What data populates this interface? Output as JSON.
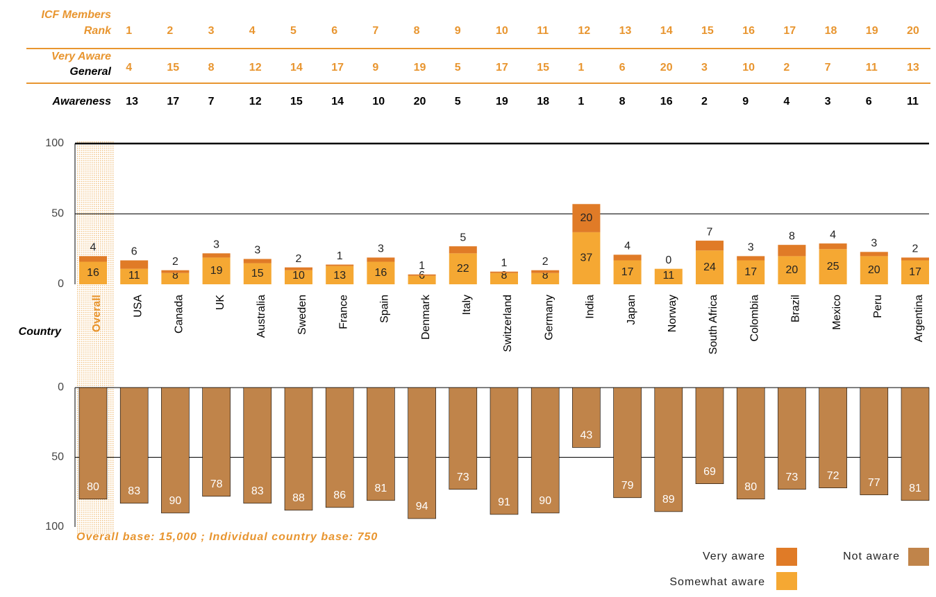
{
  "rank_table": {
    "columns": [
      1,
      2,
      3,
      4,
      5,
      6,
      7,
      8,
      9,
      10,
      11,
      12,
      13,
      14,
      15,
      16,
      17,
      18,
      19,
      20
    ],
    "rows": [
      {
        "label": [
          "ICF Members",
          "Rank"
        ],
        "values": [
          1,
          2,
          3,
          4,
          5,
          6,
          7,
          8,
          9,
          10,
          11,
          12,
          13,
          14,
          15,
          16,
          17,
          18,
          19,
          20
        ]
      },
      {
        "label": [
          "Very Aware"
        ],
        "values": [
          4,
          15,
          8,
          12,
          14,
          17,
          9,
          19,
          5,
          17,
          15,
          1,
          6,
          20,
          3,
          10,
          2,
          7,
          11,
          13
        ]
      },
      {
        "label": [
          "General",
          "Awareness"
        ],
        "values": [
          13,
          17,
          7,
          12,
          15,
          14,
          10,
          20,
          5,
          19,
          18,
          1,
          8,
          16,
          2,
          9,
          4,
          3,
          6,
          11
        ]
      }
    ]
  },
  "chart_data": {
    "type": "bar",
    "stacked": true,
    "x_label": "Country",
    "categories": [
      "Overall",
      "USA",
      "Canada",
      "UK",
      "Australia",
      "Sweden",
      "France",
      "Spain",
      "Denmark",
      "Italy",
      "Switzerland",
      "Germany",
      "India",
      "Japan",
      "Norway",
      "South Africa",
      "Colombia",
      "Brazil",
      "Mexico",
      "Peru",
      "Argentina"
    ],
    "series": [
      {
        "name": "Somewhat aware",
        "color": "#f5a833",
        "values": [
          16,
          11,
          8,
          19,
          15,
          10,
          13,
          16,
          6,
          22,
          8,
          8,
          37,
          17,
          11,
          24,
          17,
          20,
          25,
          20,
          17
        ]
      },
      {
        "name": "Very aware",
        "color": "#e07b27",
        "values": [
          4,
          6,
          2,
          3,
          3,
          2,
          1,
          3,
          1,
          5,
          1,
          2,
          20,
          4,
          0,
          7,
          3,
          8,
          4,
          3,
          2
        ]
      },
      {
        "name": "Not aware",
        "color": "#c0844a",
        "axis": "y2",
        "values": [
          80,
          83,
          90,
          78,
          83,
          88,
          86,
          81,
          94,
          73,
          91,
          90,
          43,
          79,
          89,
          69,
          80,
          73,
          72,
          77,
          81
        ]
      }
    ],
    "ylim": [
      0,
      100
    ],
    "yticks": [
      0,
      50,
      100
    ],
    "y2lim": [
      0,
      100
    ],
    "y2ticks": [
      0,
      50,
      100
    ],
    "y2_inverted": true,
    "footnote": "Overall base:  15,000 ; Individual country base:  750"
  }
}
